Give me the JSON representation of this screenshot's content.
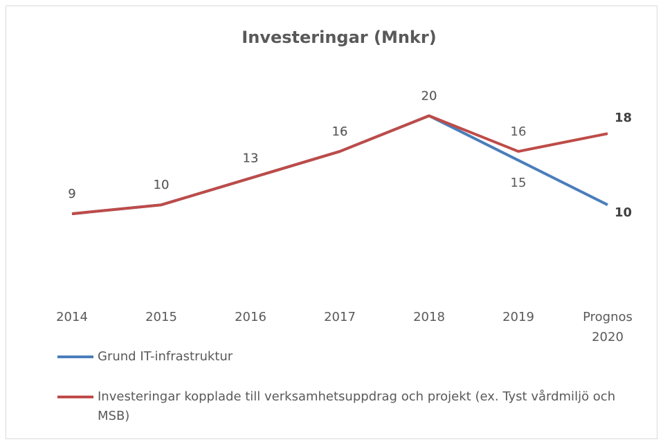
{
  "chart_data": {
    "type": "line",
    "title": "Investeringar (Mnkr)",
    "categories": [
      "2014",
      "2015",
      "2016",
      "2017",
      "2018",
      "2019",
      "Prognos 2020"
    ],
    "series": [
      {
        "name": "Grund IT-infrastruktur",
        "color": "#4a7ebb",
        "values": [
          9,
          10,
          13,
          16,
          20,
          15,
          10
        ]
      },
      {
        "name": "Investeringar kopplade till verksamhetsuppdrag och projekt (ex. Tyst vårdmiljö och MSB)",
        "color": "#be4b48",
        "values": [
          9,
          10,
          13,
          16,
          20,
          16,
          18
        ]
      }
    ],
    "ylim": [
      0,
      25
    ],
    "legend": "bottom"
  }
}
